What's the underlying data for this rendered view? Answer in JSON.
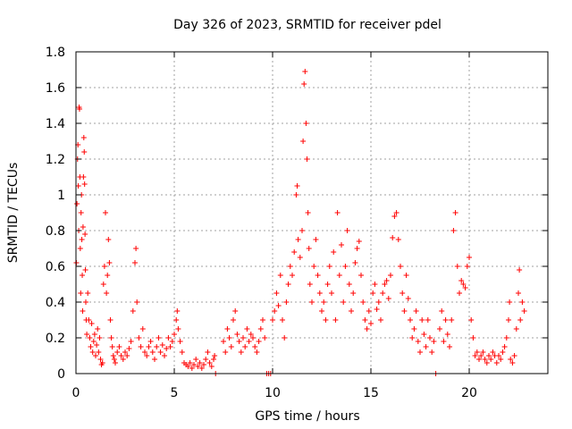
{
  "chart_data": {
    "type": "scatter",
    "title": "Day 326 of 2023, SRMTID for receiver pdel",
    "xlabel": "GPS time / hours",
    "ylabel": "SRMTID / TECUs",
    "xlim": [
      0,
      24
    ],
    "ylim": [
      0,
      1.8
    ],
    "xticks": [
      0,
      5,
      10,
      15,
      20
    ],
    "xtick_labels": [
      "0",
      "5",
      "10",
      "15",
      "20"
    ],
    "yticks": [
      0,
      0.2,
      0.4,
      0.6,
      0.8,
      1,
      1.2,
      1.4,
      1.6,
      1.8
    ],
    "ytick_labels": [
      "0",
      "0.2",
      "0.4",
      "0.6",
      "0.8",
      "1",
      "1.2",
      "1.4",
      "1.6",
      "1.8"
    ],
    "grid": true,
    "marker": "+",
    "color": "#ff0000",
    "series": [
      {
        "name": "SRMTID",
        "points": [
          [
            0.02,
            0.62
          ],
          [
            0.05,
            0.95
          ],
          [
            0.08,
            1.2
          ],
          [
            0.1,
            1.28
          ],
          [
            0.12,
            1.05
          ],
          [
            0.14,
            0.8
          ],
          [
            0.16,
            1.49
          ],
          [
            0.18,
            1.48
          ],
          [
            0.2,
            1.1
          ],
          [
            0.22,
            0.7
          ],
          [
            0.24,
            0.45
          ],
          [
            0.26,
            0.9
          ],
          [
            0.28,
            1.0
          ],
          [
            0.3,
            0.75
          ],
          [
            0.32,
            0.55
          ],
          [
            0.34,
            0.35
          ],
          [
            0.36,
            0.82
          ],
          [
            0.38,
            1.1
          ],
          [
            0.4,
            1.32
          ],
          [
            0.42,
            1.24
          ],
          [
            0.44,
            1.06
          ],
          [
            0.46,
            0.78
          ],
          [
            0.48,
            0.58
          ],
          [
            0.5,
            0.4
          ],
          [
            0.52,
            0.3
          ],
          [
            0.55,
            0.22
          ],
          [
            0.6,
            0.45
          ],
          [
            0.65,
            0.3
          ],
          [
            0.7,
            0.2
          ],
          [
            0.75,
            0.15
          ],
          [
            0.8,
            0.28
          ],
          [
            0.85,
            0.12
          ],
          [
            0.9,
            0.18
          ],
          [
            0.95,
            0.22
          ],
          [
            1.0,
            0.1
          ],
          [
            1.05,
            0.16
          ],
          [
            1.1,
            0.25
          ],
          [
            1.15,
            0.12
          ],
          [
            1.2,
            0.2
          ],
          [
            1.25,
            0.08
          ],
          [
            1.3,
            0.05
          ],
          [
            1.35,
            0.06
          ],
          [
            1.4,
            0.5
          ],
          [
            1.45,
            0.6
          ],
          [
            1.5,
            0.9
          ],
          [
            1.55,
            0.45
          ],
          [
            1.6,
            0.55
          ],
          [
            1.65,
            0.75
          ],
          [
            1.7,
            0.62
          ],
          [
            1.75,
            0.3
          ],
          [
            1.8,
            0.2
          ],
          [
            1.85,
            0.15
          ],
          [
            1.9,
            0.1
          ],
          [
            1.95,
            0.08
          ],
          [
            2.0,
            0.06
          ],
          [
            2.1,
            0.12
          ],
          [
            2.2,
            0.15
          ],
          [
            2.3,
            0.1
          ],
          [
            2.4,
            0.08
          ],
          [
            2.5,
            0.12
          ],
          [
            2.6,
            0.1
          ],
          [
            2.7,
            0.14
          ],
          [
            2.8,
            0.18
          ],
          [
            2.9,
            0.35
          ],
          [
            3.0,
            0.62
          ],
          [
            3.05,
            0.7
          ],
          [
            3.1,
            0.4
          ],
          [
            3.2,
            0.2
          ],
          [
            3.3,
            0.15
          ],
          [
            3.4,
            0.25
          ],
          [
            3.5,
            0.12
          ],
          [
            3.6,
            0.1
          ],
          [
            3.7,
            0.15
          ],
          [
            3.8,
            0.18
          ],
          [
            3.9,
            0.12
          ],
          [
            4.0,
            0.08
          ],
          [
            4.1,
            0.15
          ],
          [
            4.2,
            0.2
          ],
          [
            4.3,
            0.12
          ],
          [
            4.4,
            0.16
          ],
          [
            4.5,
            0.1
          ],
          [
            4.6,
            0.14
          ],
          [
            4.7,
            0.2
          ],
          [
            4.8,
            0.15
          ],
          [
            4.9,
            0.18
          ],
          [
            5.0,
            0.22
          ],
          [
            5.1,
            0.3
          ],
          [
            5.15,
            0.35
          ],
          [
            5.2,
            0.25
          ],
          [
            5.3,
            0.18
          ],
          [
            5.4,
            0.12
          ],
          [
            5.5,
            0.06
          ],
          [
            5.6,
            0.05
          ],
          [
            5.7,
            0.04
          ],
          [
            5.8,
            0.06
          ],
          [
            5.9,
            0.03
          ],
          [
            6.0,
            0.05
          ],
          [
            6.1,
            0.08
          ],
          [
            6.2,
            0.04
          ],
          [
            6.3,
            0.06
          ],
          [
            6.4,
            0.03
          ],
          [
            6.5,
            0.05
          ],
          [
            6.6,
            0.08
          ],
          [
            6.7,
            0.12
          ],
          [
            6.8,
            0.06
          ],
          [
            6.9,
            0.04
          ],
          [
            7.0,
            0.08
          ],
          [
            7.05,
            0.1
          ],
          [
            7.1,
            0.0
          ],
          [
            7.5,
            0.18
          ],
          [
            7.6,
            0.12
          ],
          [
            7.7,
            0.25
          ],
          [
            7.8,
            0.2
          ],
          [
            7.9,
            0.15
          ],
          [
            8.0,
            0.3
          ],
          [
            8.1,
            0.35
          ],
          [
            8.2,
            0.22
          ],
          [
            8.3,
            0.18
          ],
          [
            8.4,
            0.12
          ],
          [
            8.5,
            0.2
          ],
          [
            8.6,
            0.15
          ],
          [
            8.7,
            0.25
          ],
          [
            8.8,
            0.18
          ],
          [
            8.9,
            0.22
          ],
          [
            9.0,
            0.2
          ],
          [
            9.1,
            0.15
          ],
          [
            9.2,
            0.12
          ],
          [
            9.3,
            0.18
          ],
          [
            9.4,
            0.25
          ],
          [
            9.5,
            0.3
          ],
          [
            9.6,
            0.2
          ],
          [
            9.7,
            0.0
          ],
          [
            9.8,
            0.0
          ],
          [
            9.9,
            0.0
          ],
          [
            10.0,
            0.3
          ],
          [
            10.1,
            0.35
          ],
          [
            10.2,
            0.45
          ],
          [
            10.3,
            0.38
          ],
          [
            10.4,
            0.55
          ],
          [
            10.5,
            0.3
          ],
          [
            10.6,
            0.2
          ],
          [
            10.7,
            0.4
          ],
          [
            10.8,
            0.5
          ],
          [
            10.9,
            0.6
          ],
          [
            11.0,
            0.55
          ],
          [
            11.1,
            0.68
          ],
          [
            11.2,
            1.0
          ],
          [
            11.25,
            1.05
          ],
          [
            11.3,
            0.75
          ],
          [
            11.4,
            0.65
          ],
          [
            11.5,
            0.8
          ],
          [
            11.55,
            1.3
          ],
          [
            11.6,
            1.62
          ],
          [
            11.65,
            1.69
          ],
          [
            11.7,
            1.4
          ],
          [
            11.75,
            1.2
          ],
          [
            11.8,
            0.9
          ],
          [
            11.85,
            0.7
          ],
          [
            11.9,
            0.5
          ],
          [
            12.0,
            0.4
          ],
          [
            12.1,
            0.6
          ],
          [
            12.2,
            0.75
          ],
          [
            12.3,
            0.55
          ],
          [
            12.4,
            0.45
          ],
          [
            12.5,
            0.35
          ],
          [
            12.6,
            0.4
          ],
          [
            12.7,
            0.3
          ],
          [
            12.8,
            0.5
          ],
          [
            12.9,
            0.6
          ],
          [
            13.0,
            0.45
          ],
          [
            13.1,
            0.68
          ],
          [
            13.2,
            0.3
          ],
          [
            13.3,
            0.9
          ],
          [
            13.4,
            0.55
          ],
          [
            13.5,
            0.72
          ],
          [
            13.6,
            0.4
          ],
          [
            13.7,
            0.6
          ],
          [
            13.8,
            0.8
          ],
          [
            13.9,
            0.5
          ],
          [
            14.0,
            0.35
          ],
          [
            14.1,
            0.45
          ],
          [
            14.2,
            0.62
          ],
          [
            14.3,
            0.7
          ],
          [
            14.4,
            0.74
          ],
          [
            14.5,
            0.55
          ],
          [
            14.6,
            0.4
          ],
          [
            14.7,
            0.3
          ],
          [
            14.8,
            0.25
          ],
          [
            14.9,
            0.35
          ],
          [
            15.0,
            0.28
          ],
          [
            15.1,
            0.45
          ],
          [
            15.2,
            0.5
          ],
          [
            15.3,
            0.36
          ],
          [
            15.4,
            0.4
          ],
          [
            15.5,
            0.3
          ],
          [
            15.6,
            0.45
          ],
          [
            15.7,
            0.5
          ],
          [
            15.8,
            0.52
          ],
          [
            15.9,
            0.42
          ],
          [
            16.0,
            0.55
          ],
          [
            16.1,
            0.76
          ],
          [
            16.2,
            0.88
          ],
          [
            16.3,
            0.9
          ],
          [
            16.4,
            0.75
          ],
          [
            16.5,
            0.6
          ],
          [
            16.6,
            0.45
          ],
          [
            16.7,
            0.35
          ],
          [
            16.8,
            0.55
          ],
          [
            16.9,
            0.42
          ],
          [
            17.0,
            0.3
          ],
          [
            17.1,
            0.2
          ],
          [
            17.2,
            0.25
          ],
          [
            17.3,
            0.35
          ],
          [
            17.4,
            0.18
          ],
          [
            17.5,
            0.12
          ],
          [
            17.6,
            0.3
          ],
          [
            17.7,
            0.22
          ],
          [
            17.8,
            0.15
          ],
          [
            17.9,
            0.3
          ],
          [
            18.0,
            0.2
          ],
          [
            18.1,
            0.12
          ],
          [
            18.2,
            0.18
          ],
          [
            18.3,
            0.0
          ],
          [
            18.5,
            0.25
          ],
          [
            18.6,
            0.35
          ],
          [
            18.7,
            0.18
          ],
          [
            18.8,
            0.3
          ],
          [
            18.9,
            0.22
          ],
          [
            19.0,
            0.15
          ],
          [
            19.1,
            0.3
          ],
          [
            19.2,
            0.8
          ],
          [
            19.3,
            0.9
          ],
          [
            19.4,
            0.6
          ],
          [
            19.5,
            0.45
          ],
          [
            19.6,
            0.52
          ],
          [
            19.7,
            0.5
          ],
          [
            19.8,
            0.48
          ],
          [
            19.9,
            0.6
          ],
          [
            20.0,
            0.65
          ],
          [
            20.1,
            0.3
          ],
          [
            20.2,
            0.2
          ],
          [
            20.3,
            0.1
          ],
          [
            20.4,
            0.12
          ],
          [
            20.5,
            0.08
          ],
          [
            20.6,
            0.1
          ],
          [
            20.7,
            0.12
          ],
          [
            20.8,
            0.08
          ],
          [
            20.9,
            0.06
          ],
          [
            21.0,
            0.1
          ],
          [
            21.1,
            0.08
          ],
          [
            21.2,
            0.12
          ],
          [
            21.3,
            0.1
          ],
          [
            21.4,
            0.06
          ],
          [
            21.5,
            0.1
          ],
          [
            21.6,
            0.08
          ],
          [
            21.7,
            0.12
          ],
          [
            21.8,
            0.15
          ],
          [
            21.9,
            0.2
          ],
          [
            22.0,
            0.3
          ],
          [
            22.05,
            0.4
          ],
          [
            22.1,
            0.08
          ],
          [
            22.2,
            0.06
          ],
          [
            22.3,
            0.1
          ],
          [
            22.4,
            0.25
          ],
          [
            22.5,
            0.45
          ],
          [
            22.55,
            0.58
          ],
          [
            22.6,
            0.3
          ],
          [
            22.7,
            0.4
          ],
          [
            22.8,
            0.35
          ]
        ]
      }
    ]
  }
}
